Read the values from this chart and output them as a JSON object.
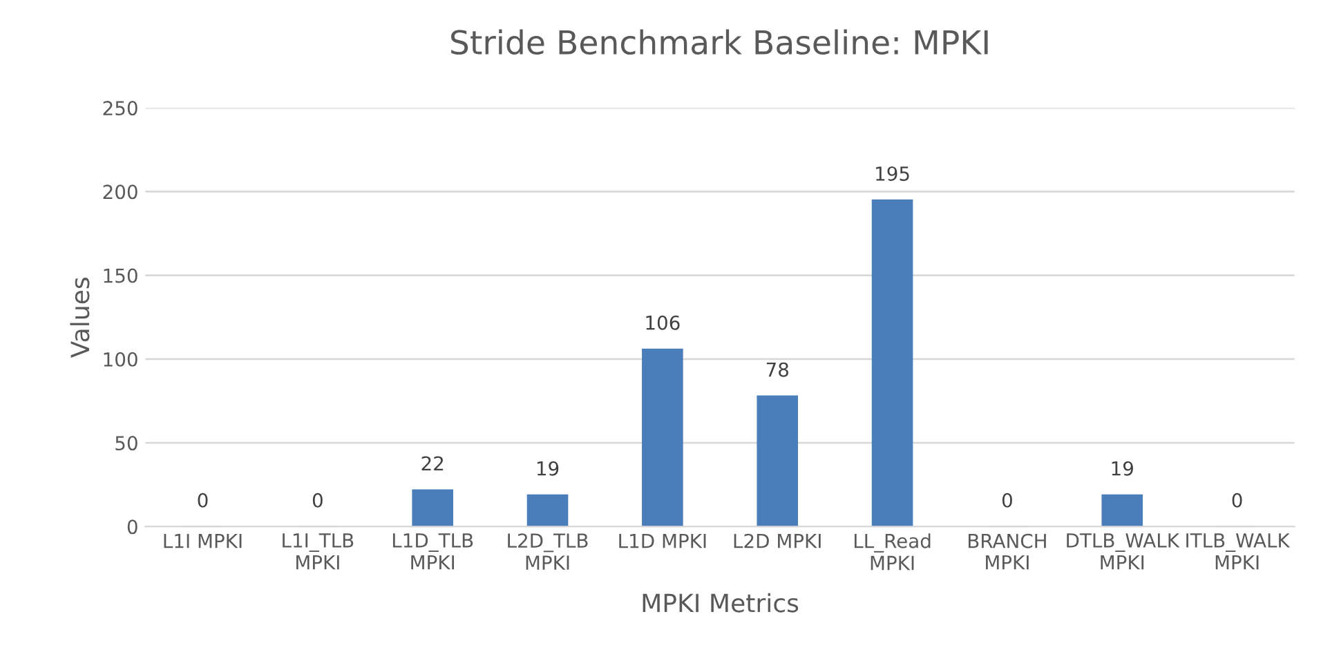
{
  "chart_data": {
    "type": "bar",
    "title": "Stride Benchmark Baseline: MPKI",
    "xlabel": "MPKI Metrics",
    "ylabel": "Values",
    "categories": [
      "L1I MPKI",
      "L1I_TLB\nMPKI",
      "L1D_TLB\nMPKI",
      "L2D_TLB\nMPKI",
      "L1D MPKI",
      "L2D MPKI",
      "LL_Read\nMPKI",
      "BRANCH\nMPKI",
      "DTLB_WALK\nMPKI",
      "ITLB_WALK\nMPKI"
    ],
    "values": [
      0,
      0,
      22,
      19,
      106,
      78,
      195,
      0,
      19,
      0
    ],
    "color": "#4a7ebb",
    "ylim": [
      0,
      250
    ],
    "yticks": [
      0,
      50,
      100,
      150,
      200,
      250
    ],
    "grid": "y",
    "data_labels": true
  }
}
